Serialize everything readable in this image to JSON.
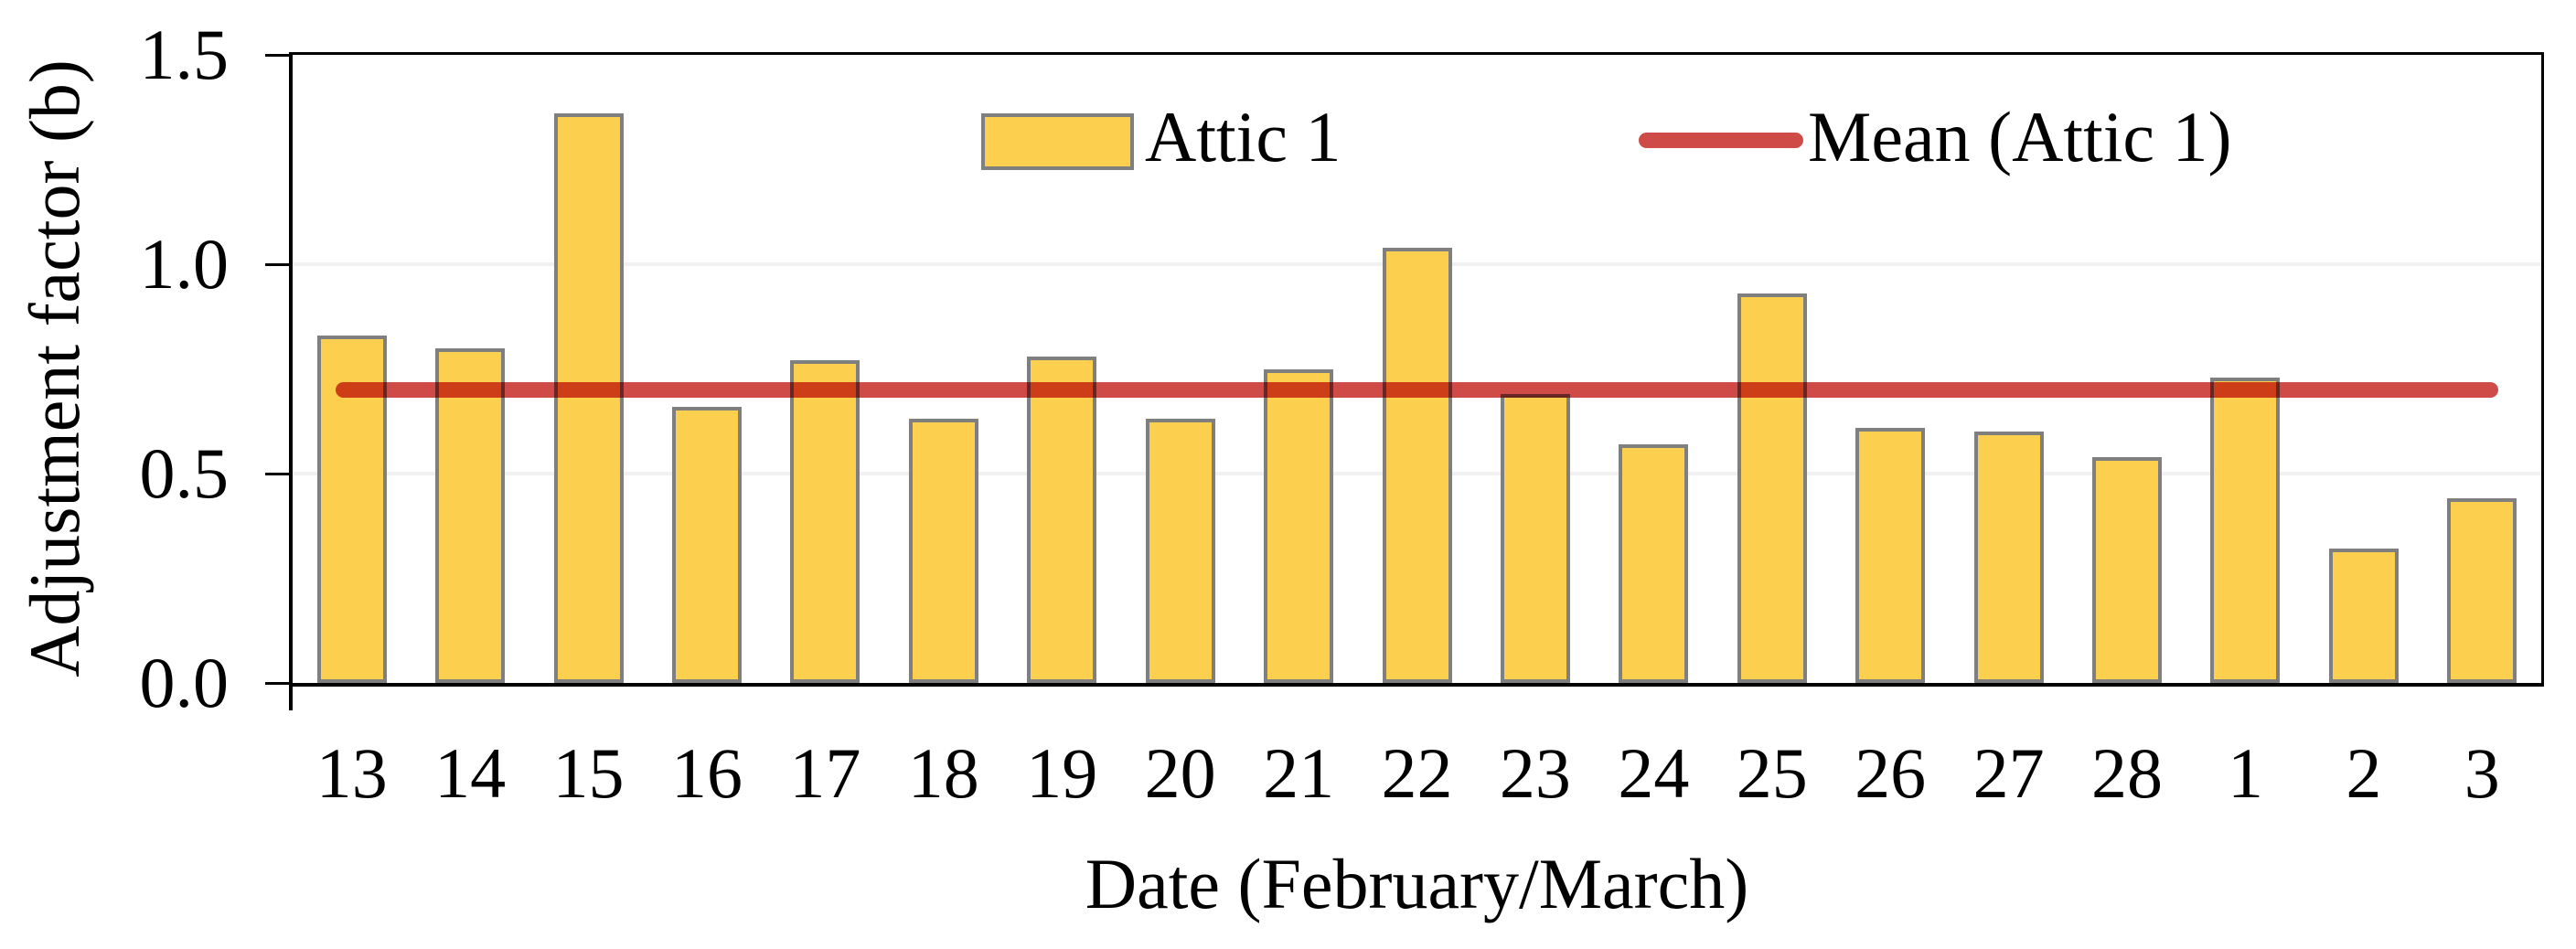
{
  "chart_data": {
    "type": "bar",
    "title": "",
    "xlabel": "Date (February/March)",
    "ylabel": "Adjustment factor (b)",
    "categories": [
      "13",
      "14",
      "15",
      "16",
      "17",
      "18",
      "19",
      "20",
      "21",
      "22",
      "23",
      "24",
      "25",
      "26",
      "27",
      "28",
      "1",
      "2",
      "3"
    ],
    "series": [
      {
        "name": "Attic 1",
        "type": "bar",
        "values": [
          0.83,
          0.8,
          1.36,
          0.66,
          0.77,
          0.63,
          0.78,
          0.63,
          0.75,
          1.04,
          0.69,
          0.57,
          0.93,
          0.61,
          0.6,
          0.54,
          0.73,
          0.32,
          0.44
        ]
      },
      {
        "name": "Mean (Attic 1)",
        "type": "line",
        "value": 0.7
      }
    ],
    "ylim": [
      0,
      1.5
    ],
    "yticks": [
      0,
      0.5,
      1.0,
      1.5
    ],
    "ytick_labels": [
      "0.0",
      "0.5",
      "1.0",
      "1.5"
    ],
    "gridline_values": [
      0.5,
      1.0
    ],
    "grid": "horizontal-light",
    "legend_position": "top-inside",
    "colors": {
      "bar_fill": "#fdcf4f",
      "bar_border": "#7f7f7f",
      "mean_line": "#cf4b48",
      "gridline": "#f1f1f1",
      "axis": "#000000",
      "text": "#000000"
    }
  }
}
